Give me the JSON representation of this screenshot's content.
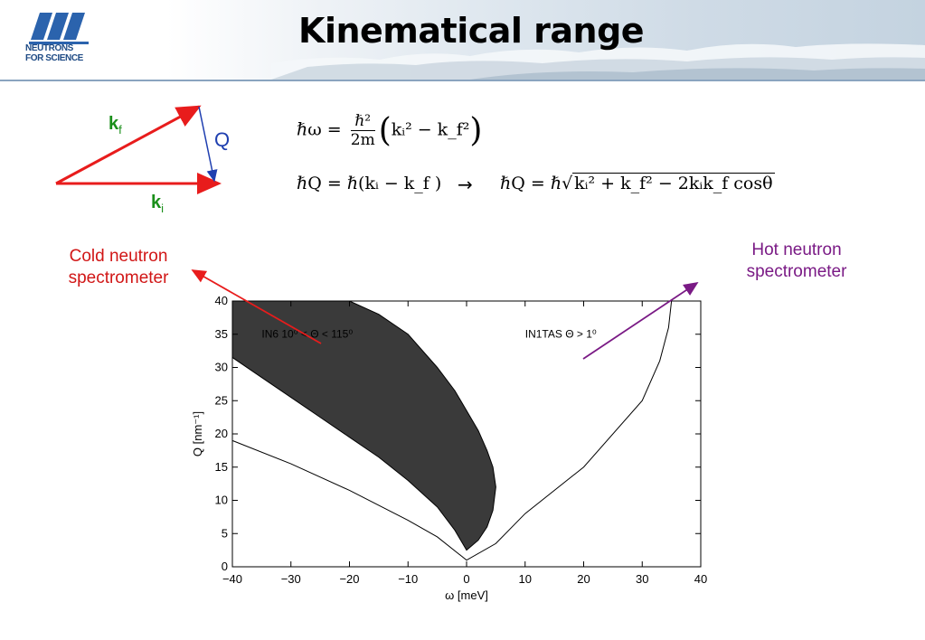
{
  "header": {
    "title": "Kinematical range",
    "logo_text_line1": "NEUTRONS",
    "logo_text_line2": "FOR SCIENCE",
    "logo_icon": "ill-logo"
  },
  "vector_diagram": {
    "kf_symbol": "k",
    "kf_subscript": "f",
    "ki_symbol": "k",
    "ki_subscript": "i",
    "q_symbol": "Q",
    "colors": {
      "k_vectors": "#e81c1c",
      "q_vector": "#1f3fb0",
      "k_labels": "#1a8f1a"
    }
  },
  "equations": {
    "eq1_lhs": "ℏω =",
    "eq1_num": "ℏ²",
    "eq1_den": "2m",
    "eq1_body": "k",
    "eq1_body_full": "kᵢ² − k_f²",
    "eq2": "ℏQ = ℏ(kᵢ − k_f )",
    "arrow": "→",
    "eq3_lhs": "ℏQ = ℏ",
    "eq3_radicand": "kᵢ² + k_f² − 2kᵢk_f cosθ"
  },
  "annotations": {
    "cold_line1": "Cold neutron",
    "cold_line2": "spectrometer",
    "hot_line1": "Hot neutron",
    "hot_line2": "spectrometer",
    "cold_color": "#d11616",
    "hot_color": "#7a1a85"
  },
  "chart_data": {
    "type": "area",
    "title": "",
    "xlabel": "ω [meV]",
    "ylabel": "Q [nm⁻¹]",
    "xlim": [
      -40,
      40
    ],
    "ylim": [
      0,
      40
    ],
    "xticks": [
      -40,
      -30,
      -20,
      -10,
      0,
      10,
      20,
      30,
      40
    ],
    "yticks": [
      0,
      5,
      10,
      15,
      20,
      25,
      30,
      35,
      40
    ],
    "grid": false,
    "series": [
      {
        "name": "IN1TAS Θ > 1⁰",
        "fill": "#ffffff",
        "upper": {
          "x": [
            -40,
            -30,
            -20,
            -10,
            -5,
            0,
            5,
            10,
            20,
            30,
            33,
            34.5,
            35
          ],
          "y": [
            40,
            40,
            40,
            40,
            40,
            40,
            40,
            40,
            40,
            40,
            40,
            40,
            40
          ]
        },
        "lower": {
          "x": [
            -40,
            -30,
            -20,
            -10,
            -5,
            0,
            5,
            10,
            20,
            30,
            33,
            34.5,
            35
          ],
          "y": [
            19,
            15.5,
            11.5,
            7,
            4.5,
            1,
            3.5,
            8,
            15,
            25,
            31,
            36,
            40
          ]
        }
      },
      {
        "name": "IN6 10⁰ < Θ < 115⁰",
        "fill": "#3a3a3a",
        "upper": {
          "x": [
            -40,
            -35,
            -30,
            -25,
            -20,
            -15,
            -10,
            -5,
            -2,
            0,
            2,
            3.5,
            4.5,
            5
          ],
          "y": [
            40,
            40,
            40,
            40,
            40,
            38,
            35,
            30,
            26.5,
            23.5,
            20.5,
            17.5,
            15,
            12
          ]
        },
        "lower": {
          "x": [
            -40,
            -35,
            -30,
            -25,
            -20,
            -15,
            -10,
            -5,
            -2,
            0,
            2,
            3.5,
            4.5,
            5
          ],
          "y": [
            31.5,
            28.5,
            25.5,
            22.5,
            19.5,
            16.5,
            13,
            9,
            5.5,
            2.5,
            4,
            6,
            8.5,
            12
          ]
        }
      }
    ],
    "annotations": [
      "IN6 10⁰ < Θ < 115⁰",
      "IN1TAS Θ > 1⁰"
    ]
  }
}
